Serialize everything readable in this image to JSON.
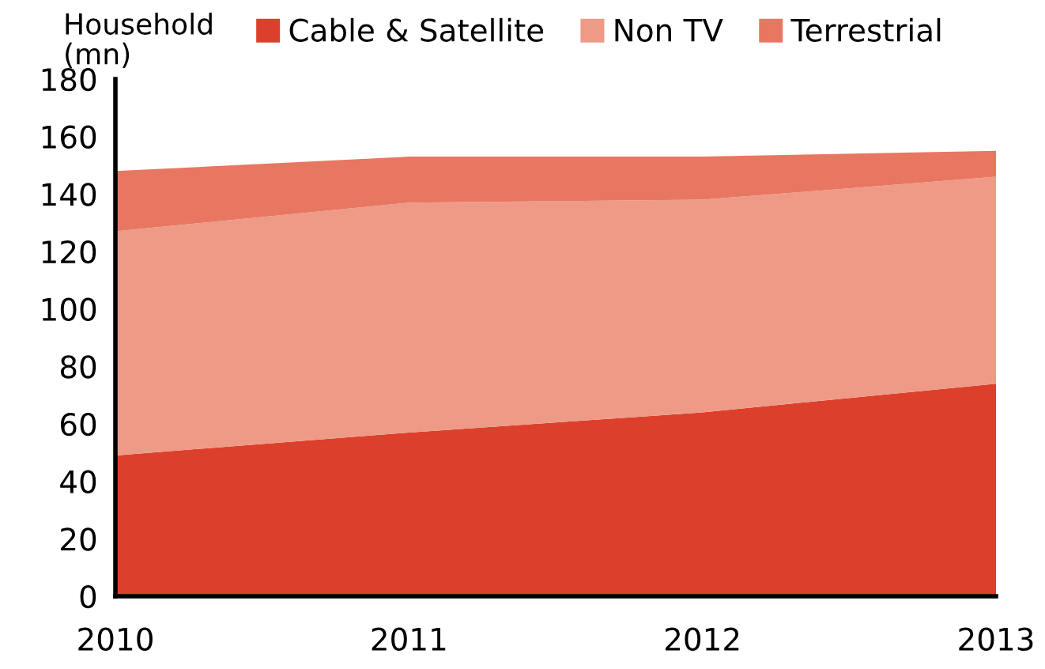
{
  "chart_data": {
    "type": "area",
    "stacked": true,
    "ylabel": "Household (mn)",
    "x": [
      2010,
      2011,
      2012,
      2013
    ],
    "xlim": [
      2010,
      2013
    ],
    "xticks": [
      2010,
      2011,
      2012,
      2013
    ],
    "ylim": [
      0,
      180
    ],
    "yticks": [
      0,
      20,
      40,
      60,
      80,
      100,
      120,
      140,
      160,
      180
    ],
    "series": [
      {
        "name": "Cable & Satellite",
        "color": "#dc402c",
        "values": [
          49,
          57,
          64,
          74
        ]
      },
      {
        "name": "Non TV",
        "color": "#ee9a86",
        "values": [
          78,
          80,
          74,
          72
        ]
      },
      {
        "name": "Terrestrial",
        "color": "#e87762",
        "values": [
          21,
          16,
          15,
          9
        ]
      }
    ],
    "grid": false,
    "legend": "top"
  }
}
